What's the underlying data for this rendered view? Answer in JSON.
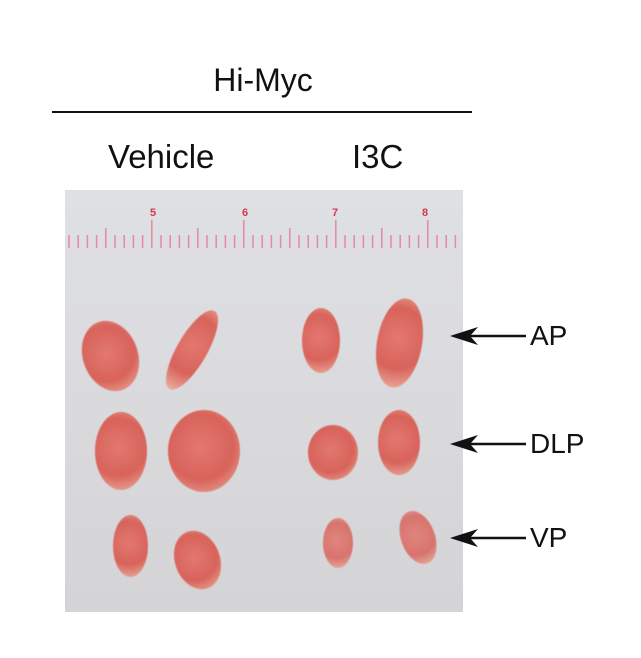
{
  "figure": {
    "title": "Hi-Myc",
    "groups": [
      "Vehicle",
      "I3C"
    ],
    "ruler_numbers": [
      "5",
      "6",
      "7",
      "8"
    ],
    "row_labels": [
      "AP",
      "DLP",
      "VP"
    ]
  }
}
